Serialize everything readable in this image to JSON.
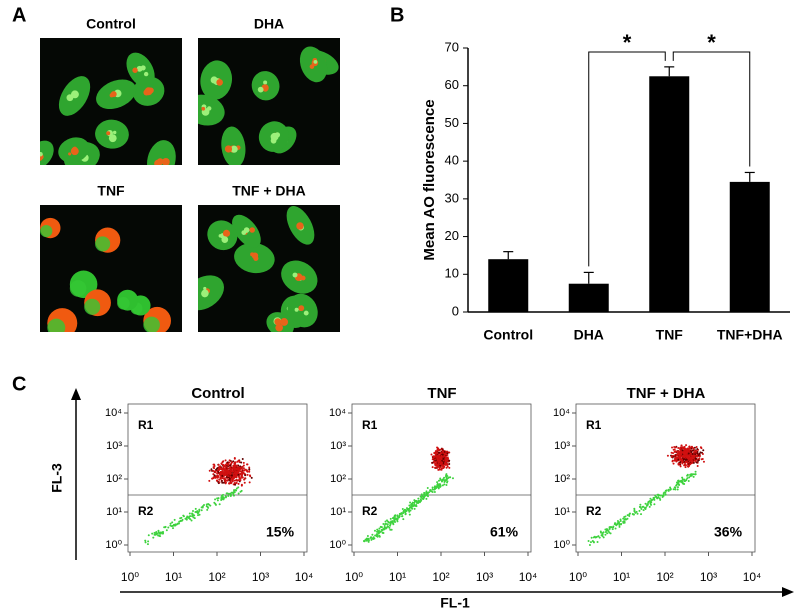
{
  "panel_labels": [
    "A",
    "B",
    "C"
  ],
  "micrographs": [
    "Control",
    "DHA",
    "TNF",
    "TNF + DHA"
  ],
  "chart_data": {
    "type": "bar",
    "categories": [
      "Control",
      "DHA",
      "TNF",
      "TNF+DHA"
    ],
    "values": [
      14,
      7.5,
      62.5,
      34.5
    ],
    "errors": [
      2,
      3,
      2.5,
      2.5
    ],
    "color": "#000000",
    "y_label": "Mean AO fluorescence",
    "ylim": [
      0,
      70
    ],
    "yticks": [
      0,
      10,
      20,
      30,
      40,
      50,
      60,
      70
    ],
    "significance": [
      {
        "label": "*",
        "between": [
          "DHA",
          "TNF"
        ]
      },
      {
        "label": "*",
        "between": [
          "TNF",
          "TNF+DHA"
        ]
      }
    ]
  },
  "flow_cytometry": {
    "x_label": "FL-1",
    "y_label": "FL-3",
    "log_scale": true,
    "xlim": [
      1,
      10000
    ],
    "ylim": [
      1,
      10000
    ],
    "xticks": [
      {
        "value": 1,
        "label": "10⁰"
      },
      {
        "value": 10,
        "label": "10¹"
      },
      {
        "value": 100,
        "label": "10²"
      },
      {
        "value": 1000,
        "label": "10³"
      },
      {
        "value": 10000,
        "label": "10⁴"
      }
    ],
    "yticks": [
      {
        "value": 1,
        "label": "10⁰"
      },
      {
        "value": 10,
        "label": "10¹"
      },
      {
        "value": 100,
        "label": "10²"
      },
      {
        "value": 1000,
        "label": "10³"
      },
      {
        "value": 10000,
        "label": "10⁴"
      }
    ],
    "regions": [
      "R1",
      "R2"
    ],
    "plots": [
      {
        "title": "Control",
        "r2_percent": "15%"
      },
      {
        "title": "TNF",
        "r2_percent": "61%"
      },
      {
        "title": "TNF + DHA",
        "r2_percent": "36%"
      }
    ]
  }
}
